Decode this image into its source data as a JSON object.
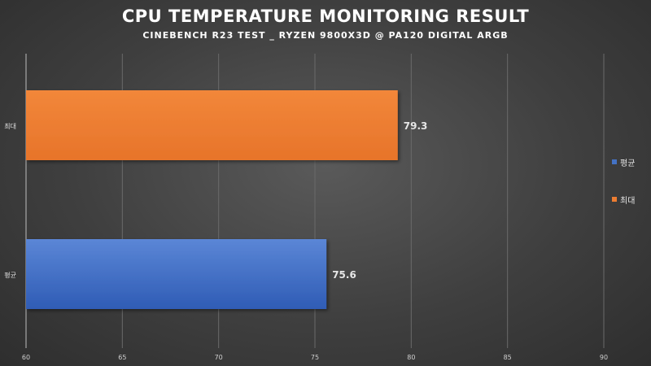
{
  "chart_data": {
    "type": "bar",
    "orientation": "horizontal",
    "title": "CPU TEMPERATURE MONITORING RESULT",
    "subtitle": "CINEBENCH R23 TEST _ RYZEN 9800X3D @ PA120 DIGITAL ARGB",
    "categories": [
      "최대",
      "평균"
    ],
    "values": [
      79.3,
      75.6
    ],
    "bar_colors": [
      "#ed7d31",
      "#4472c4"
    ],
    "xlim": [
      60,
      90
    ],
    "x_ticks": [
      60,
      65,
      70,
      75,
      80,
      85,
      90
    ],
    "grid": true,
    "legend": {
      "position": "right",
      "items": [
        {
          "name": "평균",
          "color": "#4472c4"
        },
        {
          "name": "최대",
          "color": "#ed7d31"
        }
      ]
    }
  }
}
